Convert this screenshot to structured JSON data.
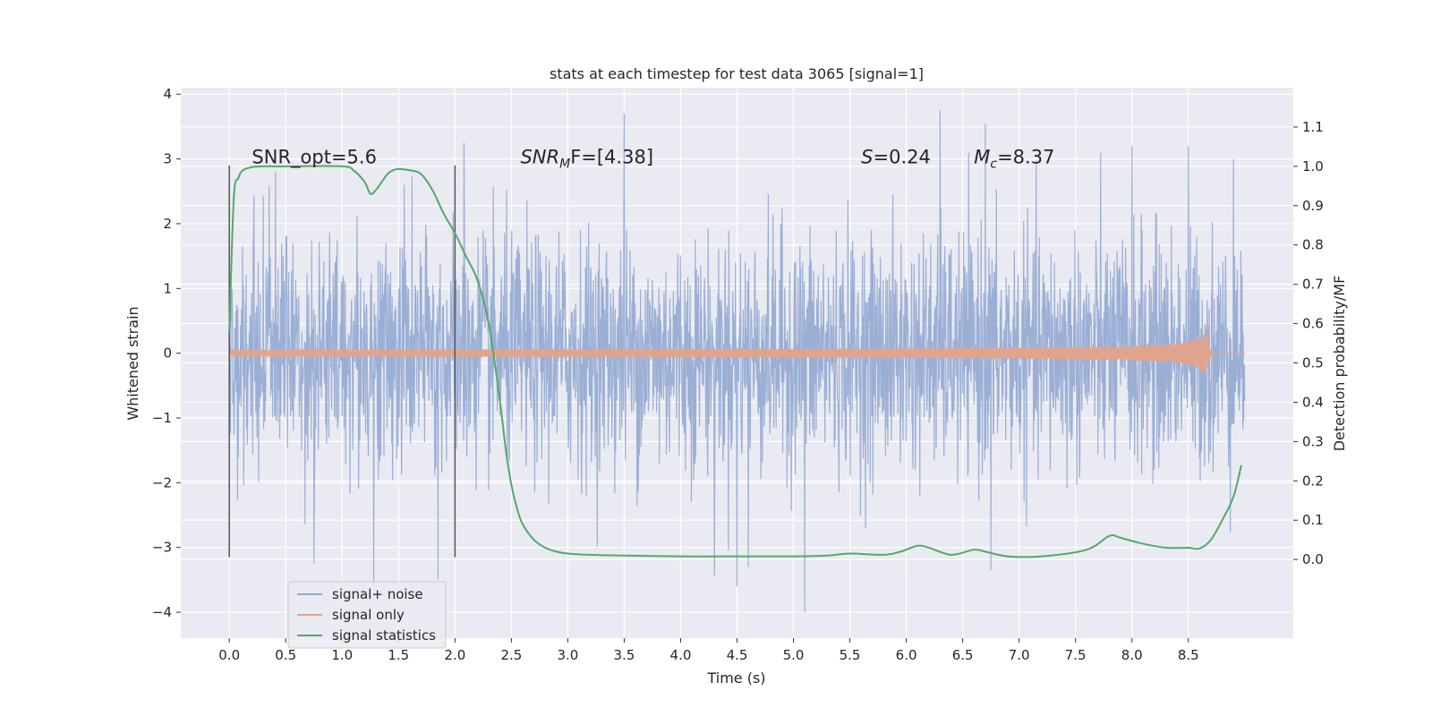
{
  "chart_data": {
    "type": "line",
    "title": "stats at each timestep for test data 3065 [signal=1]",
    "xlabel": "Time (s)",
    "ylabel_left": "Whitened strain",
    "ylabel_right": "Detection probability/MF",
    "xlim": [
      -0.43,
      9.43
    ],
    "ylim_left": [
      -4.4,
      4.1
    ],
    "ylim_right": [
      -0.2,
      1.2
    ],
    "x_ticks": [
      0.0,
      0.5,
      1.0,
      1.5,
      2.0,
      2.5,
      3.0,
      3.5,
      4.0,
      4.5,
      5.0,
      5.5,
      6.0,
      6.5,
      7.0,
      7.5,
      8.0,
      8.5
    ],
    "x_tick_labels": [
      "0.0",
      "0.5",
      "1.0",
      "1.5",
      "2.0",
      "2.5",
      "3.0",
      "3.5",
      "4.0",
      "4.5",
      "5.0",
      "5.5",
      "6.0",
      "6.5",
      "7.0",
      "7.5",
      "8.0",
      "8.5"
    ],
    "y_ticks_left": [
      -4,
      -3,
      -2,
      -1,
      0,
      1,
      2,
      3,
      4
    ],
    "y_tick_labels_left": [
      "−4",
      "−3",
      "−2",
      "−1",
      "0",
      "1",
      "2",
      "3",
      "4"
    ],
    "y_ticks_right": [
      0.0,
      0.1,
      0.2,
      0.3,
      0.4,
      0.5,
      0.6,
      0.7,
      0.8,
      0.9,
      1.0,
      1.1
    ],
    "y_tick_labels_right": [
      "0.0",
      "0.1",
      "0.2",
      "0.3",
      "0.4",
      "0.5",
      "0.6",
      "0.7",
      "0.8",
      "0.9",
      "1.0",
      "1.1"
    ],
    "grid": true,
    "vertical_markers": [
      {
        "x": 0.0,
        "y_range": [
          -3.15,
          2.9
        ]
      },
      {
        "x": 2.0,
        "y_range": [
          -3.15,
          2.9
        ]
      }
    ],
    "series": [
      {
        "name": "signal+ noise",
        "axis": "left",
        "color": "#92a8d1",
        "kind": "noise",
        "x_range": [
          0.0,
          9.0
        ],
        "sigma": 0.9,
        "extremes": [
          [
            0.41,
            2.8
          ],
          [
            0.75,
            -3.25
          ],
          [
            1.28,
            -3.6
          ],
          [
            1.55,
            2.6
          ],
          [
            1.85,
            -3.5
          ],
          [
            2.08,
            3.25
          ],
          [
            3.5,
            3.7
          ],
          [
            4.3,
            -3.45
          ],
          [
            4.5,
            -3.6
          ],
          [
            4.6,
            -3.3
          ],
          [
            5.1,
            -4.0
          ],
          [
            6.3,
            3.75
          ],
          [
            6.7,
            3.55
          ],
          [
            6.75,
            -3.35
          ],
          [
            8.0,
            3.2
          ],
          [
            8.5,
            3.2
          ],
          [
            8.9,
            3.0
          ]
        ]
      },
      {
        "name": "signal only",
        "axis": "left",
        "color": "#e0a48c",
        "kind": "chirp",
        "x_range": [
          0.0,
          9.0
        ],
        "merger_time": 8.66,
        "peak_amplitude": 0.72
      },
      {
        "name": "signal statistics",
        "axis": "right",
        "color": "#55a868",
        "x": [
          0.0,
          0.04,
          0.08,
          0.12,
          0.2,
          0.3,
          0.5,
          1.0,
          1.1,
          1.2,
          1.25,
          1.3,
          1.35,
          1.4,
          1.45,
          1.5,
          1.6,
          1.7,
          1.8,
          1.9,
          2.0,
          2.1,
          2.2,
          2.3,
          2.4,
          2.45,
          2.5,
          2.55,
          2.6,
          2.7,
          2.8,
          2.9,
          3.0,
          3.2,
          3.5,
          4.0,
          4.5,
          5.0,
          5.3,
          5.5,
          5.8,
          5.95,
          6.1,
          6.2,
          6.4,
          6.6,
          6.7,
          6.9,
          7.2,
          7.6,
          7.8,
          7.9,
          8.1,
          8.3,
          8.5,
          8.6,
          8.7,
          8.8,
          8.9,
          8.97
        ],
        "y": [
          0.58,
          0.92,
          0.97,
          0.99,
          0.998,
          1.0,
          1.0,
          1.0,
          0.99,
          0.96,
          0.93,
          0.94,
          0.96,
          0.98,
          0.99,
          0.993,
          0.99,
          0.98,
          0.94,
          0.88,
          0.83,
          0.77,
          0.71,
          0.6,
          0.4,
          0.28,
          0.19,
          0.13,
          0.09,
          0.05,
          0.03,
          0.02,
          0.015,
          0.012,
          0.01,
          0.008,
          0.008,
          0.008,
          0.01,
          0.015,
          0.012,
          0.02,
          0.035,
          0.03,
          0.012,
          0.025,
          0.02,
          0.008,
          0.008,
          0.025,
          0.06,
          0.055,
          0.04,
          0.03,
          0.03,
          0.028,
          0.05,
          0.1,
          0.16,
          0.24
        ]
      }
    ],
    "annotations": [
      {
        "text": "SNR_opt=5.6",
        "x": 0.2,
        "y": 3.0
      },
      {
        "text": "SNR",
        "sub": "M",
        "tail": "F=[4.38]",
        "x": 2.58,
        "y": 3.0
      },
      {
        "text": "S",
        "tail": "=0.24",
        "x": 5.6,
        "y": 3.0
      },
      {
        "text": "M",
        "sub": "c",
        "tail": "=8.37",
        "x": 6.6,
        "y": 3.0
      }
    ],
    "legend": {
      "placement": "lower-left",
      "entries": [
        "signal+ noise",
        "signal only",
        "signal statistics"
      ]
    }
  }
}
